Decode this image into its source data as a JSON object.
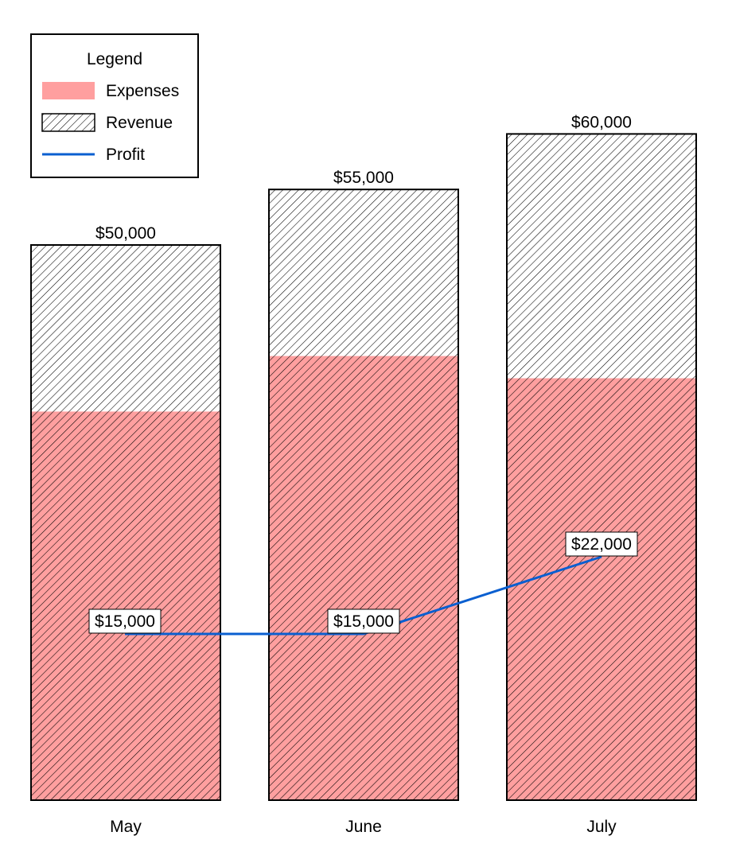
{
  "chart_data": {
    "type": "bar",
    "categories": [
      "May",
      "June",
      "July"
    ],
    "series": [
      {
        "name": "Revenue",
        "values": [
          50000,
          55000,
          60000
        ],
        "labels": [
          "$50,000",
          "$55,000",
          "$60,000"
        ]
      },
      {
        "name": "Expenses",
        "values": [
          35000,
          40000,
          38000
        ]
      },
      {
        "name": "Profit",
        "values": [
          15000,
          15000,
          22000
        ],
        "labels": [
          "$15,000",
          "$15,000",
          "$22,000"
        ]
      }
    ],
    "ylim": [
      0,
      70000
    ],
    "legend": {
      "title": "Legend",
      "position": "top-left",
      "items": [
        "Expenses",
        "Revenue",
        "Profit"
      ]
    },
    "colors": {
      "expenses": "#ff9f9f",
      "hatch": "#000000",
      "profit": "#0a5fd0",
      "border": "#000000"
    }
  }
}
